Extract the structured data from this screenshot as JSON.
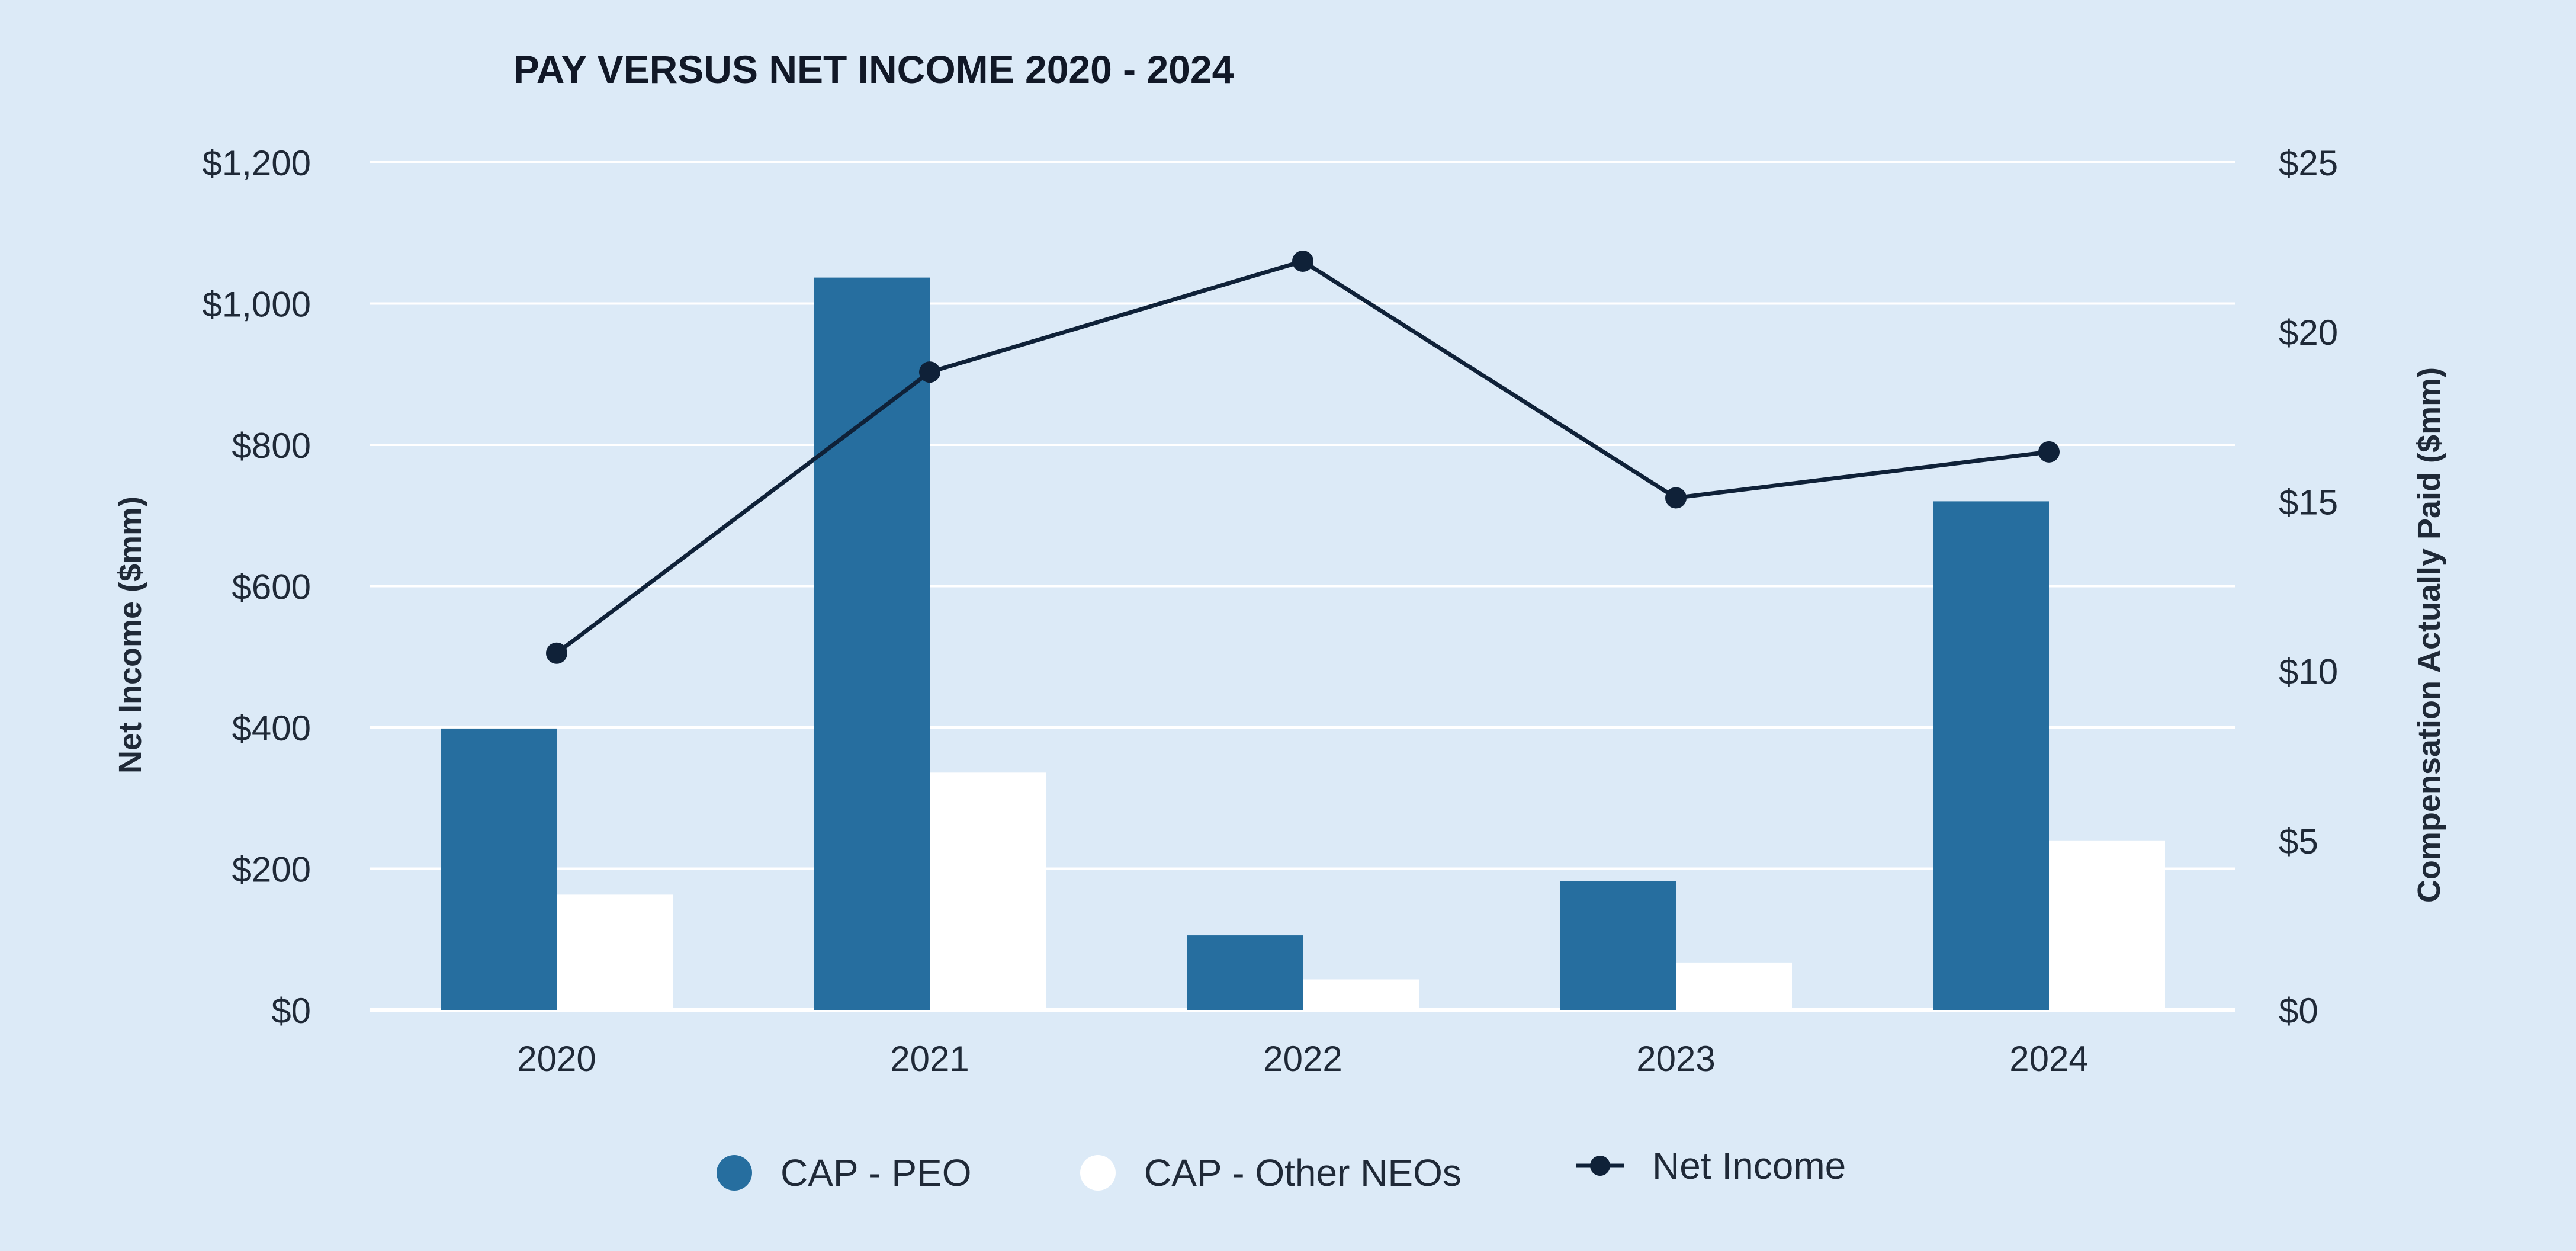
{
  "chart_data": {
    "type": "bar",
    "title": "PAY VERSUS NET INCOME 2020 - 2024",
    "categories": [
      "2020",
      "2021",
      "2022",
      "2023",
      "2024"
    ],
    "series": [
      {
        "name": "CAP - PEO",
        "kind": "bar",
        "axis": "right",
        "values": [
          8.3,
          21.6,
          2.2,
          3.8,
          15.0
        ],
        "color": "#266e9f"
      },
      {
        "name": "CAP - Other NEOs",
        "kind": "bar",
        "axis": "right",
        "values": [
          3.4,
          7.0,
          0.9,
          1.4,
          5.0
        ],
        "color": "#ffffff"
      },
      {
        "name": "Net Income",
        "kind": "line",
        "axis": "left",
        "values": [
          505,
          903,
          1060,
          725,
          790
        ],
        "color": "#0f2138"
      }
    ],
    "y_left": {
      "label": "Net Income ($mm)",
      "ticks": [
        "$0",
        "$200",
        "$400",
        "$600",
        "$800",
        "$1,000",
        "$1,200"
      ],
      "tick_values": [
        0,
        200,
        400,
        600,
        800,
        1000,
        1200
      ],
      "lim": [
        0,
        1200
      ]
    },
    "y_right": {
      "label": "Compensation Actually Paid ($mm)",
      "ticks": [
        "$0",
        "$5",
        "$10",
        "$15",
        "$20",
        "$25"
      ],
      "tick_values": [
        0,
        5,
        10,
        15,
        20,
        25
      ],
      "lim": [
        0,
        25
      ]
    },
    "legend": [
      "CAP - PEO",
      "CAP - Other NEOs",
      "Net Income"
    ],
    "legend_position": "bottom",
    "grid": true
  },
  "colors": {
    "background": "#dceaf7",
    "grid": "#ffffff",
    "peo": "#266e9f",
    "other_neos": "#ffffff",
    "net_income": "#0f2138"
  }
}
